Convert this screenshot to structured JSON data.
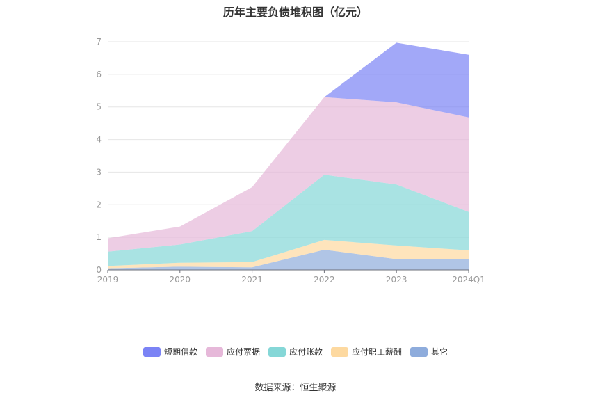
{
  "chart_data": {
    "type": "area",
    "stacked": true,
    "title": "历年主要负债堆积图（亿元）",
    "categories": [
      "2019",
      "2020",
      "2021",
      "2022",
      "2023",
      "2024Q1"
    ],
    "ylim": [
      0,
      7
    ],
    "yticks": [
      "0",
      "1",
      "2",
      "3",
      "4",
      "5",
      "6",
      "7"
    ],
    "grid": true,
    "legend_position": "bottom",
    "series": [
      {
        "name": "其它",
        "color": "#8eacdc",
        "values": [
          0.05,
          0.1,
          0.08,
          0.62,
          0.33,
          0.33
        ]
      },
      {
        "name": "应付职工薪酬",
        "color": "#fdd9a0",
        "values": [
          0.07,
          0.12,
          0.16,
          0.3,
          0.42,
          0.27
        ]
      },
      {
        "name": "应付账款",
        "color": "#85d7d7",
        "values": [
          0.44,
          0.56,
          0.95,
          2.0,
          1.87,
          1.18
        ]
      },
      {
        "name": "应付票据",
        "color": "#e6b8d9",
        "values": [
          0.41,
          0.55,
          1.35,
          2.38,
          2.52,
          2.9
        ]
      },
      {
        "name": "短期借款",
        "color": "#7b83f5",
        "values": [
          0,
          0,
          0,
          0,
          1.83,
          1.92
        ]
      }
    ]
  },
  "legend": {
    "items": [
      {
        "label": "短期借款",
        "color": "#7b83f5"
      },
      {
        "label": "应付票据",
        "color": "#e6b8d9"
      },
      {
        "label": "应付账款",
        "color": "#85d7d7"
      },
      {
        "label": "应付职工薪酬",
        "color": "#fdd9a0"
      },
      {
        "label": "其它",
        "color": "#8eacdc"
      }
    ]
  },
  "source": "数据来源：恒生聚源"
}
